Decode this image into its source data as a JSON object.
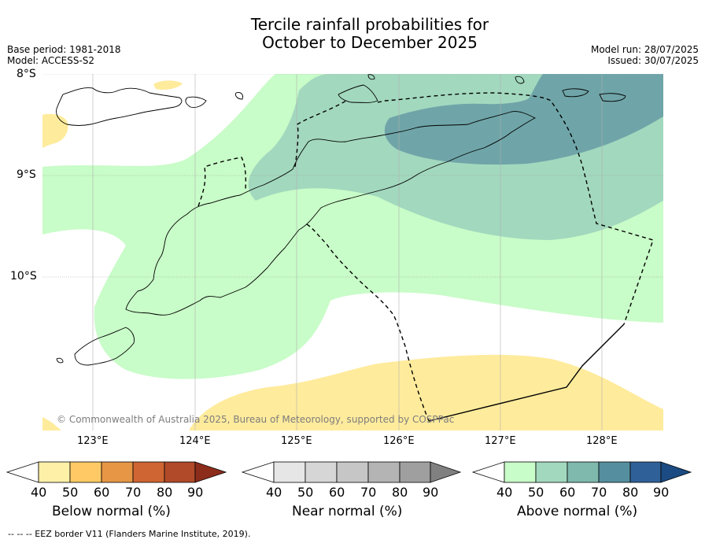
{
  "title_line1": "Tercile rainfall probabilities for",
  "title_line2": "October to December 2025",
  "base_period": "Base period: 1981-2018",
  "model": "Model: ACCESS-S2",
  "model_run": "Model run: 28/07/2025",
  "issued": "Issued: 30/07/2025",
  "lat_labels": [
    "8°S",
    "9°S",
    "10°S"
  ],
  "lon_labels": [
    "123°E",
    "124°E",
    "125°E",
    "126°E",
    "127°E",
    "128°E"
  ],
  "copyright": "© Commonwealth of Australia 2025, Bureau of Meteorology, supported by COSPPac",
  "colorbars": [
    {
      "label": "Below normal (%)",
      "ticks": [
        "40",
        "50",
        "60",
        "70",
        "80",
        "90"
      ],
      "colors": [
        "#fff0a8",
        "#ffca65",
        "#e69645",
        "#cf6533",
        "#b04a29",
        "#8c2c1b"
      ]
    },
    {
      "label": "Near normal (%)",
      "ticks": [
        "40",
        "50",
        "60",
        "70",
        "80",
        "90"
      ],
      "colors": [
        "#e6e6e6",
        "#d6d6d6",
        "#c6c6c6",
        "#b4b4b4",
        "#9f9f9f",
        "#808080"
      ]
    },
    {
      "label": "Above normal (%)",
      "ticks": [
        "40",
        "50",
        "60",
        "70",
        "80",
        "90"
      ],
      "colors": [
        "#c8fcc8",
        "#a2d8be",
        "#7fb8ad",
        "#558f9f",
        "#2f6198",
        "#1b4b82"
      ]
    }
  ],
  "footnote": "--  --  -- EEZ border V11 (Flanders Marine Institute, 2019)."
}
